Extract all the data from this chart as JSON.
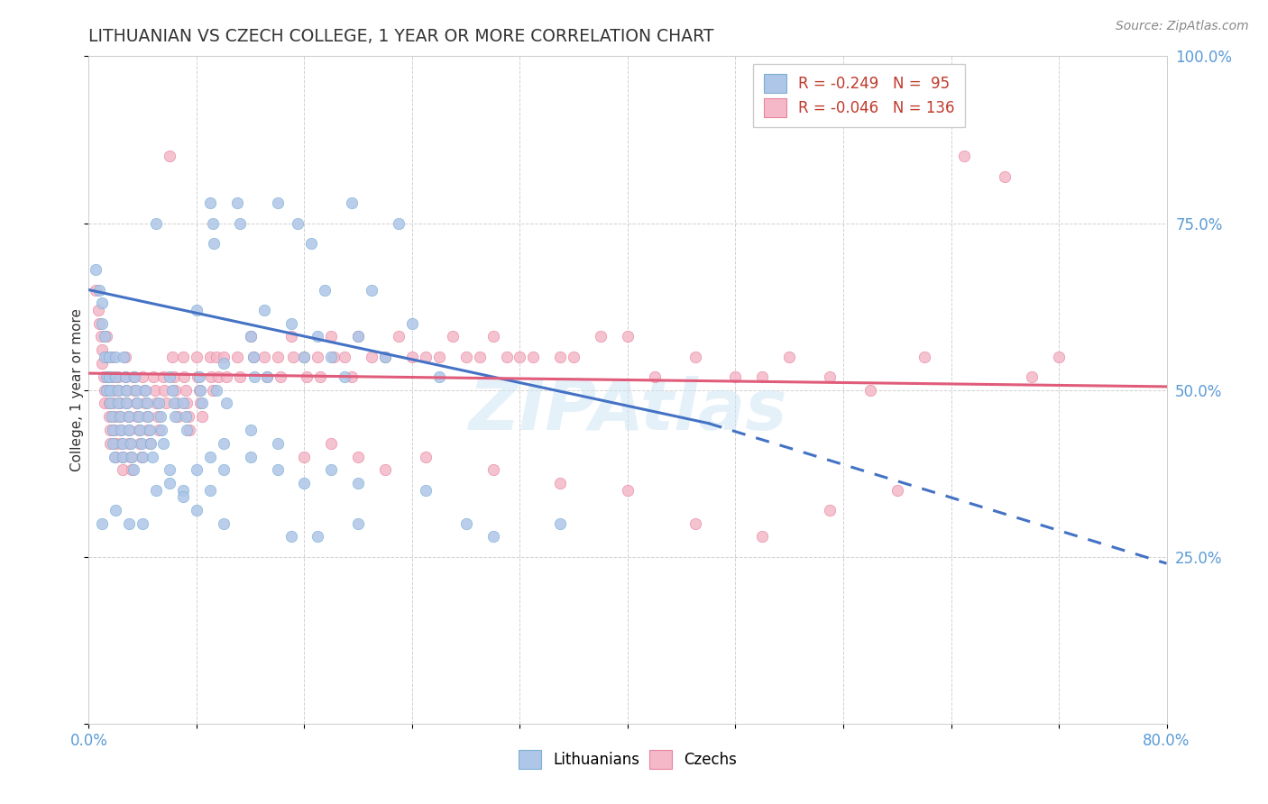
{
  "title": "LITHUANIAN VS CZECH COLLEGE, 1 YEAR OR MORE CORRELATION CHART",
  "source_text": "Source: ZipAtlas.com",
  "ylabel": "College, 1 year or more",
  "xlim": [
    0.0,
    0.8
  ],
  "ylim": [
    0.0,
    1.0
  ],
  "xticks": [
    0.0,
    0.08,
    0.16,
    0.24,
    0.32,
    0.4,
    0.48,
    0.56,
    0.64,
    0.72,
    0.8
  ],
  "xticklabels": [
    "0.0%",
    "",
    "",
    "",
    "",
    "",
    "",
    "",
    "",
    "",
    "80.0%"
  ],
  "yticks": [
    0.0,
    0.25,
    0.5,
    0.75,
    1.0
  ],
  "yticklabels_right": [
    "",
    "25.0%",
    "50.0%",
    "75.0%",
    "100.0%"
  ],
  "watermark": "ZIPAtlas",
  "background_color": "#ffffff",
  "grid_color": "#cccccc",
  "title_color": "#333333",
  "axis_label_color": "#333333",
  "tick_color": "#5b9bd5",
  "lith_trend_start_x": 0.0,
  "lith_trend_start_y": 0.65,
  "lith_trend_solid_end_x": 0.46,
  "lith_trend_solid_end_y": 0.45,
  "lith_trend_dashed_end_x": 0.8,
  "lith_trend_dashed_end_y": 0.24,
  "czech_trend_start_x": 0.0,
  "czech_trend_start_y": 0.525,
  "czech_trend_end_x": 0.8,
  "czech_trend_end_y": 0.505,
  "lith_color_fill": "#aec6e8",
  "lith_color_edge": "#7bafd4",
  "czech_color_fill": "#f4b8c8",
  "czech_color_edge": "#e8839f",
  "lith_trend_color": "#4472c4",
  "czech_trend_color": "#e05c7a",
  "lithuanian_points": [
    [
      0.005,
      0.68
    ],
    [
      0.008,
      0.65
    ],
    [
      0.01,
      0.63
    ],
    [
      0.01,
      0.6
    ],
    [
      0.012,
      0.58
    ],
    [
      0.012,
      0.55
    ],
    [
      0.013,
      0.52
    ],
    [
      0.013,
      0.5
    ],
    [
      0.015,
      0.55
    ],
    [
      0.015,
      0.52
    ],
    [
      0.016,
      0.5
    ],
    [
      0.016,
      0.48
    ],
    [
      0.017,
      0.46
    ],
    [
      0.018,
      0.44
    ],
    [
      0.018,
      0.42
    ],
    [
      0.019,
      0.4
    ],
    [
      0.02,
      0.55
    ],
    [
      0.02,
      0.52
    ],
    [
      0.022,
      0.5
    ],
    [
      0.022,
      0.48
    ],
    [
      0.023,
      0.46
    ],
    [
      0.024,
      0.44
    ],
    [
      0.025,
      0.42
    ],
    [
      0.025,
      0.4
    ],
    [
      0.026,
      0.55
    ],
    [
      0.027,
      0.52
    ],
    [
      0.028,
      0.5
    ],
    [
      0.028,
      0.48
    ],
    [
      0.03,
      0.46
    ],
    [
      0.03,
      0.44
    ],
    [
      0.031,
      0.42
    ],
    [
      0.032,
      0.4
    ],
    [
      0.033,
      0.38
    ],
    [
      0.034,
      0.52
    ],
    [
      0.035,
      0.5
    ],
    [
      0.036,
      0.48
    ],
    [
      0.037,
      0.46
    ],
    [
      0.038,
      0.44
    ],
    [
      0.039,
      0.42
    ],
    [
      0.04,
      0.4
    ],
    [
      0.042,
      0.5
    ],
    [
      0.043,
      0.48
    ],
    [
      0.044,
      0.46
    ],
    [
      0.045,
      0.44
    ],
    [
      0.046,
      0.42
    ],
    [
      0.047,
      0.4
    ],
    [
      0.05,
      0.75
    ],
    [
      0.052,
      0.48
    ],
    [
      0.053,
      0.46
    ],
    [
      0.054,
      0.44
    ],
    [
      0.055,
      0.42
    ],
    [
      0.06,
      0.52
    ],
    [
      0.062,
      0.5
    ],
    [
      0.063,
      0.48
    ],
    [
      0.064,
      0.46
    ],
    [
      0.07,
      0.48
    ],
    [
      0.072,
      0.46
    ],
    [
      0.073,
      0.44
    ],
    [
      0.08,
      0.62
    ],
    [
      0.082,
      0.52
    ],
    [
      0.083,
      0.5
    ],
    [
      0.084,
      0.48
    ],
    [
      0.09,
      0.78
    ],
    [
      0.092,
      0.75
    ],
    [
      0.093,
      0.72
    ],
    [
      0.095,
      0.5
    ],
    [
      0.1,
      0.54
    ],
    [
      0.102,
      0.48
    ],
    [
      0.11,
      0.78
    ],
    [
      0.112,
      0.75
    ],
    [
      0.12,
      0.58
    ],
    [
      0.122,
      0.55
    ],
    [
      0.123,
      0.52
    ],
    [
      0.13,
      0.62
    ],
    [
      0.132,
      0.52
    ],
    [
      0.14,
      0.78
    ],
    [
      0.15,
      0.6
    ],
    [
      0.155,
      0.75
    ],
    [
      0.16,
      0.55
    ],
    [
      0.165,
      0.72
    ],
    [
      0.17,
      0.58
    ],
    [
      0.175,
      0.65
    ],
    [
      0.18,
      0.55
    ],
    [
      0.19,
      0.52
    ],
    [
      0.195,
      0.78
    ],
    [
      0.2,
      0.58
    ],
    [
      0.21,
      0.65
    ],
    [
      0.22,
      0.55
    ],
    [
      0.23,
      0.75
    ],
    [
      0.24,
      0.6
    ],
    [
      0.25,
      0.35
    ],
    [
      0.26,
      0.52
    ],
    [
      0.28,
      0.3
    ],
    [
      0.3,
      0.28
    ],
    [
      0.35,
      0.3
    ],
    [
      0.01,
      0.3
    ],
    [
      0.02,
      0.32
    ],
    [
      0.03,
      0.3
    ],
    [
      0.04,
      0.3
    ],
    [
      0.05,
      0.35
    ],
    [
      0.06,
      0.38
    ],
    [
      0.07,
      0.35
    ],
    [
      0.08,
      0.32
    ],
    [
      0.09,
      0.35
    ],
    [
      0.1,
      0.3
    ],
    [
      0.15,
      0.28
    ],
    [
      0.17,
      0.28
    ],
    [
      0.2,
      0.3
    ],
    [
      0.1,
      0.42
    ],
    [
      0.12,
      0.4
    ],
    [
      0.14,
      0.38
    ],
    [
      0.16,
      0.36
    ],
    [
      0.18,
      0.38
    ],
    [
      0.2,
      0.36
    ],
    [
      0.06,
      0.36
    ],
    [
      0.07,
      0.34
    ],
    [
      0.08,
      0.38
    ],
    [
      0.09,
      0.4
    ],
    [
      0.1,
      0.38
    ],
    [
      0.12,
      0.44
    ],
    [
      0.14,
      0.42
    ]
  ],
  "czech_points": [
    [
      0.005,
      0.65
    ],
    [
      0.007,
      0.62
    ],
    [
      0.008,
      0.6
    ],
    [
      0.009,
      0.58
    ],
    [
      0.01,
      0.56
    ],
    [
      0.01,
      0.54
    ],
    [
      0.011,
      0.52
    ],
    [
      0.012,
      0.5
    ],
    [
      0.012,
      0.48
    ],
    [
      0.013,
      0.58
    ],
    [
      0.013,
      0.55
    ],
    [
      0.014,
      0.52
    ],
    [
      0.014,
      0.5
    ],
    [
      0.015,
      0.48
    ],
    [
      0.015,
      0.46
    ],
    [
      0.016,
      0.44
    ],
    [
      0.016,
      0.42
    ],
    [
      0.017,
      0.55
    ],
    [
      0.017,
      0.52
    ],
    [
      0.018,
      0.5
    ],
    [
      0.018,
      0.48
    ],
    [
      0.019,
      0.46
    ],
    [
      0.019,
      0.44
    ],
    [
      0.02,
      0.42
    ],
    [
      0.02,
      0.4
    ],
    [
      0.022,
      0.52
    ],
    [
      0.022,
      0.5
    ],
    [
      0.023,
      0.48
    ],
    [
      0.023,
      0.46
    ],
    [
      0.024,
      0.44
    ],
    [
      0.024,
      0.42
    ],
    [
      0.025,
      0.4
    ],
    [
      0.025,
      0.38
    ],
    [
      0.027,
      0.55
    ],
    [
      0.027,
      0.52
    ],
    [
      0.028,
      0.5
    ],
    [
      0.028,
      0.48
    ],
    [
      0.029,
      0.46
    ],
    [
      0.03,
      0.44
    ],
    [
      0.03,
      0.42
    ],
    [
      0.031,
      0.4
    ],
    [
      0.032,
      0.38
    ],
    [
      0.033,
      0.52
    ],
    [
      0.034,
      0.5
    ],
    [
      0.035,
      0.48
    ],
    [
      0.036,
      0.46
    ],
    [
      0.037,
      0.44
    ],
    [
      0.038,
      0.42
    ],
    [
      0.039,
      0.4
    ],
    [
      0.04,
      0.52
    ],
    [
      0.041,
      0.5
    ],
    [
      0.042,
      0.48
    ],
    [
      0.043,
      0.46
    ],
    [
      0.044,
      0.44
    ],
    [
      0.045,
      0.42
    ],
    [
      0.048,
      0.52
    ],
    [
      0.049,
      0.5
    ],
    [
      0.05,
      0.48
    ],
    [
      0.051,
      0.46
    ],
    [
      0.052,
      0.44
    ],
    [
      0.055,
      0.52
    ],
    [
      0.056,
      0.5
    ],
    [
      0.057,
      0.48
    ],
    [
      0.06,
      0.85
    ],
    [
      0.062,
      0.55
    ],
    [
      0.063,
      0.52
    ],
    [
      0.064,
      0.5
    ],
    [
      0.065,
      0.48
    ],
    [
      0.066,
      0.46
    ],
    [
      0.07,
      0.55
    ],
    [
      0.071,
      0.52
    ],
    [
      0.072,
      0.5
    ],
    [
      0.073,
      0.48
    ],
    [
      0.074,
      0.46
    ],
    [
      0.075,
      0.44
    ],
    [
      0.08,
      0.55
    ],
    [
      0.081,
      0.52
    ],
    [
      0.082,
      0.5
    ],
    [
      0.083,
      0.48
    ],
    [
      0.084,
      0.46
    ],
    [
      0.09,
      0.55
    ],
    [
      0.091,
      0.52
    ],
    [
      0.092,
      0.5
    ],
    [
      0.095,
      0.55
    ],
    [
      0.096,
      0.52
    ],
    [
      0.1,
      0.55
    ],
    [
      0.102,
      0.52
    ],
    [
      0.11,
      0.55
    ],
    [
      0.112,
      0.52
    ],
    [
      0.12,
      0.58
    ],
    [
      0.122,
      0.55
    ],
    [
      0.13,
      0.55
    ],
    [
      0.132,
      0.52
    ],
    [
      0.14,
      0.55
    ],
    [
      0.142,
      0.52
    ],
    [
      0.15,
      0.58
    ],
    [
      0.152,
      0.55
    ],
    [
      0.16,
      0.55
    ],
    [
      0.162,
      0.52
    ],
    [
      0.17,
      0.55
    ],
    [
      0.172,
      0.52
    ],
    [
      0.18,
      0.58
    ],
    [
      0.182,
      0.55
    ],
    [
      0.19,
      0.55
    ],
    [
      0.195,
      0.52
    ],
    [
      0.2,
      0.58
    ],
    [
      0.21,
      0.55
    ],
    [
      0.22,
      0.55
    ],
    [
      0.23,
      0.58
    ],
    [
      0.24,
      0.55
    ],
    [
      0.25,
      0.55
    ],
    [
      0.26,
      0.55
    ],
    [
      0.27,
      0.58
    ],
    [
      0.28,
      0.55
    ],
    [
      0.29,
      0.55
    ],
    [
      0.3,
      0.58
    ],
    [
      0.31,
      0.55
    ],
    [
      0.32,
      0.55
    ],
    [
      0.33,
      0.55
    ],
    [
      0.35,
      0.55
    ],
    [
      0.36,
      0.55
    ],
    [
      0.38,
      0.58
    ],
    [
      0.4,
      0.58
    ],
    [
      0.42,
      0.52
    ],
    [
      0.45,
      0.55
    ],
    [
      0.48,
      0.52
    ],
    [
      0.5,
      0.52
    ],
    [
      0.52,
      0.55
    ],
    [
      0.55,
      0.52
    ],
    [
      0.58,
      0.5
    ],
    [
      0.62,
      0.55
    ],
    [
      0.65,
      0.85
    ],
    [
      0.68,
      0.82
    ],
    [
      0.7,
      0.52
    ],
    [
      0.72,
      0.55
    ],
    [
      0.25,
      0.4
    ],
    [
      0.3,
      0.38
    ],
    [
      0.35,
      0.36
    ],
    [
      0.4,
      0.35
    ],
    [
      0.45,
      0.3
    ],
    [
      0.5,
      0.28
    ],
    [
      0.55,
      0.32
    ],
    [
      0.6,
      0.35
    ],
    [
      0.16,
      0.4
    ],
    [
      0.18,
      0.42
    ],
    [
      0.2,
      0.4
    ],
    [
      0.22,
      0.38
    ]
  ]
}
